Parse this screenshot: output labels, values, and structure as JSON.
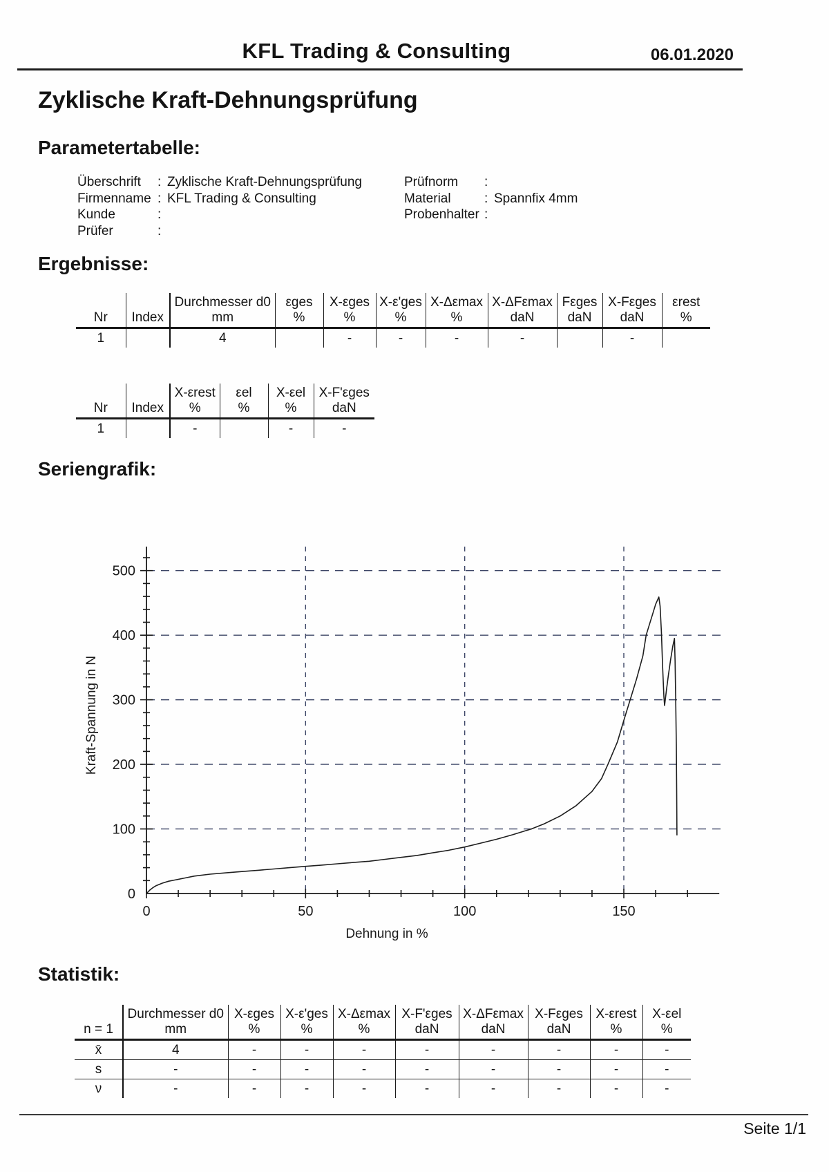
{
  "header": {
    "company": "KFL Trading & Consulting",
    "date": "06.01.2020"
  },
  "title": "Zyklische Kraft-Dehnungsprüfung",
  "sections": {
    "parameters": "Parametertabelle:",
    "results": "Ergebnisse:",
    "series": "Seriengrafik:",
    "statistics": "Statistik:"
  },
  "parameters": {
    "left": [
      {
        "label": "Überschrift",
        "colon": ":",
        "value": "Zyklische Kraft-Dehnungsprüfung"
      },
      {
        "label": "Firmenname",
        "colon": ":",
        "value": "KFL Trading & Consulting"
      },
      {
        "label": "Kunde",
        "colon": ":",
        "value": ""
      },
      {
        "label": "Prüfer",
        "colon": ":",
        "value": ""
      }
    ],
    "right": [
      {
        "label": "Prüfnorm",
        "colon": ":",
        "value": ""
      },
      {
        "label": "Material",
        "colon": ":",
        "value": "Spannfix 4mm"
      },
      {
        "label": "Probenhalter",
        "colon": ":",
        "value": ""
      }
    ]
  },
  "results_table1": {
    "col_names": [
      "",
      "",
      "Durchmesser d0",
      "εges",
      "X-εges",
      "X-ε'ges",
      "X-Δεmax",
      "X-ΔFεmax",
      "Fεges",
      "X-Fεges",
      "εrest"
    ],
    "col_units": [
      "Nr",
      "Index",
      "mm",
      "%",
      "%",
      "%",
      "%",
      "daN",
      "daN",
      "daN",
      "%"
    ],
    "rows": [
      [
        "1",
        "",
        "4",
        "",
        "-",
        "-",
        "-",
        "-",
        "",
        "-",
        ""
      ]
    ]
  },
  "results_table2": {
    "col_names": [
      "",
      "",
      "X-εrest",
      "εel",
      "X-εel",
      "X-F'εges"
    ],
    "col_units": [
      "Nr",
      "Index",
      "%",
      "%",
      "%",
      "daN"
    ],
    "rows": [
      [
        "1",
        "",
        "-",
        "",
        "-",
        "-"
      ]
    ]
  },
  "stats_table": {
    "col_names": [
      "",
      "Durchmesser d0",
      "X-εges",
      "X-ε'ges",
      "X-Δεmax",
      "X-F'εges",
      "X-ΔFεmax",
      "X-Fεges",
      "X-εrest",
      "X-εel"
    ],
    "col_units": [
      "n = 1",
      "mm",
      "%",
      "%",
      "%",
      "daN",
      "daN",
      "daN",
      "%",
      "%"
    ],
    "rows": [
      [
        "x̄",
        "4",
        "-",
        "-",
        "-",
        "-",
        "-",
        "-",
        "-",
        "-"
      ],
      [
        "s",
        "-",
        "-",
        "-",
        "-",
        "-",
        "-",
        "-",
        "-",
        "-"
      ],
      [
        "ν",
        "-",
        "-",
        "-",
        "-",
        "-",
        "-",
        "-",
        "-",
        "-"
      ]
    ]
  },
  "chart_data": {
    "type": "line",
    "title": "",
    "xlabel": "Dehnung in %",
    "ylabel": "Kraft-Spannung in N",
    "xlim": [
      0,
      180
    ],
    "ylim": [
      0,
      535
    ],
    "x_ticks": [
      0,
      50,
      100,
      150
    ],
    "y_ticks": [
      0,
      100,
      200,
      300,
      400,
      500
    ],
    "x_minor_step": 10,
    "y_minor_step": 20,
    "grid": "dashed",
    "grid_color": "#3c4566",
    "line_color": "#1e1e1e",
    "series": [
      {
        "points": [
          [
            0,
            0
          ],
          [
            1,
            5
          ],
          [
            2,
            9
          ],
          [
            3,
            12
          ],
          [
            5,
            16
          ],
          [
            7,
            19
          ],
          [
            9,
            21
          ],
          [
            12,
            24
          ],
          [
            15,
            27
          ],
          [
            20,
            30
          ],
          [
            25,
            32
          ],
          [
            30,
            34
          ],
          [
            35,
            36
          ],
          [
            40,
            38
          ],
          [
            45,
            40
          ],
          [
            50,
            42
          ],
          [
            55,
            44
          ],
          [
            60,
            46
          ],
          [
            65,
            48
          ],
          [
            70,
            50
          ],
          [
            75,
            53
          ],
          [
            80,
            56
          ],
          [
            85,
            59
          ],
          [
            90,
            63
          ],
          [
            95,
            67
          ],
          [
            100,
            72
          ],
          [
            105,
            78
          ],
          [
            110,
            84
          ],
          [
            115,
            91
          ],
          [
            121,
            100
          ],
          [
            125,
            108
          ],
          [
            130,
            120
          ],
          [
            135,
            136
          ],
          [
            140,
            158
          ],
          [
            143,
            178
          ],
          [
            145,
            200
          ],
          [
            148,
            235
          ],
          [
            150,
            268
          ],
          [
            152,
            300
          ],
          [
            154,
            332
          ],
          [
            156,
            368
          ],
          [
            157,
            400
          ],
          [
            158,
            416
          ],
          [
            159,
            432
          ],
          [
            160,
            448
          ],
          [
            161,
            459
          ],
          [
            161.4,
            445
          ],
          [
            161.8,
            405
          ],
          [
            162.2,
            350
          ],
          [
            162.6,
            305
          ],
          [
            162.8,
            291
          ],
          [
            163.4,
            315
          ],
          [
            164,
            338
          ],
          [
            164.7,
            362
          ],
          [
            165.4,
            383
          ],
          [
            165.9,
            395
          ],
          [
            166.1,
            360
          ],
          [
            166.3,
            300
          ],
          [
            166.5,
            230
          ],
          [
            166.6,
            160
          ],
          [
            166.7,
            90
          ]
        ]
      }
    ]
  },
  "footer": {
    "page_label": "Seite 1/1"
  }
}
